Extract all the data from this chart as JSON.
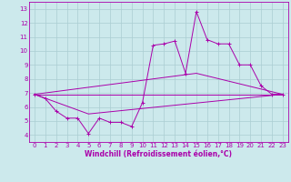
{
  "xlabel": "Windchill (Refroidissement éolien,°C)",
  "bg_color": "#cce9ec",
  "line_color": "#aa00aa",
  "grid_color": "#aacdd2",
  "xlim": [
    -0.5,
    23.5
  ],
  "ylim": [
    3.5,
    13.5
  ],
  "xticks": [
    0,
    1,
    2,
    3,
    4,
    5,
    6,
    7,
    8,
    9,
    10,
    11,
    12,
    13,
    14,
    15,
    16,
    17,
    18,
    19,
    20,
    21,
    22,
    23
  ],
  "yticks": [
    4,
    5,
    6,
    7,
    8,
    9,
    10,
    11,
    12,
    13
  ],
  "line1_x": [
    0,
    1,
    2,
    3,
    4,
    5,
    6,
    7,
    8,
    9,
    10,
    11,
    12,
    13,
    14,
    15,
    16,
    17,
    18,
    19,
    20,
    21,
    22,
    23
  ],
  "line1_y": [
    6.9,
    6.6,
    5.7,
    5.2,
    5.2,
    4.1,
    5.2,
    4.9,
    4.9,
    4.6,
    6.3,
    10.4,
    10.5,
    10.7,
    8.4,
    12.8,
    10.8,
    10.5,
    10.5,
    9.0,
    9.0,
    7.5,
    6.9,
    6.9
  ],
  "line2_x": [
    0,
    23
  ],
  "line2_y": [
    6.9,
    6.9
  ],
  "line3_x": [
    0,
    15,
    23
  ],
  "line3_y": [
    6.9,
    8.4,
    6.9
  ],
  "line4_x": [
    0,
    5,
    23
  ],
  "line4_y": [
    6.9,
    5.5,
    6.9
  ],
  "xlabel_fontsize": 5.5,
  "tick_fontsize": 5
}
